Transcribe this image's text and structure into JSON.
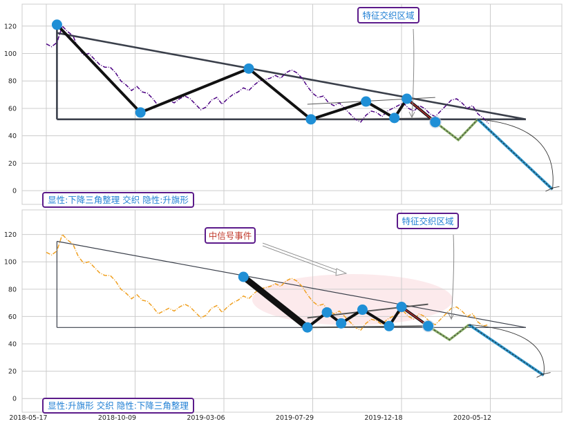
{
  "chart_data": [
    {
      "type": "line",
      "panel": "top",
      "ylim": [
        -10,
        136
      ],
      "y_ticks": [
        0,
        20,
        40,
        60,
        80,
        100,
        120
      ],
      "grid": true,
      "annotations": {
        "zone_label": "特征交织区域",
        "pattern_label": "显性:下降三角整理 交织 隐性:升旗形"
      },
      "colors": {
        "price": "#4b0082",
        "pivot": "#1f8fd6",
        "zigzag": "#111111",
        "trend": "#3a3f4a",
        "forecast_a": "#8db36a",
        "forecast_b": "#2d96cc",
        "label_box": "#5b1a8a",
        "label_text": "#1f7fd4"
      },
      "price_series": [
        [
          0,
          107
        ],
        [
          3,
          105
        ],
        [
          6,
          108
        ],
        [
          9,
          120
        ],
        [
          12,
          116
        ],
        [
          15,
          113
        ],
        [
          18,
          104
        ],
        [
          21,
          99
        ],
        [
          24,
          100
        ],
        [
          27,
          96
        ],
        [
          30,
          92
        ],
        [
          33,
          90
        ],
        [
          36,
          90
        ],
        [
          39,
          86
        ],
        [
          42,
          80
        ],
        [
          45,
          77
        ],
        [
          48,
          73
        ],
        [
          51,
          76
        ],
        [
          54,
          72
        ],
        [
          57,
          71
        ],
        [
          60,
          67
        ],
        [
          63,
          62
        ],
        [
          66,
          64
        ],
        [
          69,
          66
        ],
        [
          72,
          64
        ],
        [
          75,
          67
        ],
        [
          78,
          69
        ],
        [
          81,
          67
        ],
        [
          84,
          63
        ],
        [
          87,
          59
        ],
        [
          90,
          61
        ],
        [
          93,
          66
        ],
        [
          96,
          68
        ],
        [
          99,
          63
        ],
        [
          102,
          67
        ],
        [
          105,
          70
        ],
        [
          108,
          72
        ],
        [
          111,
          75
        ],
        [
          114,
          73
        ],
        [
          117,
          77
        ],
        [
          120,
          80
        ],
        [
          123,
          81
        ],
        [
          126,
          82
        ],
        [
          129,
          84
        ],
        [
          132,
          82
        ],
        [
          135,
          86
        ],
        [
          138,
          88
        ],
        [
          141,
          86
        ],
        [
          144,
          82
        ],
        [
          147,
          76
        ],
        [
          150,
          71
        ],
        [
          153,
          68
        ],
        [
          156,
          69
        ],
        [
          159,
          64
        ],
        [
          162,
          62
        ],
        [
          165,
          64
        ],
        [
          168,
          60
        ],
        [
          171,
          56
        ],
        [
          174,
          52
        ],
        [
          177,
          50
        ],
        [
          180,
          55
        ],
        [
          183,
          58
        ],
        [
          186,
          57
        ],
        [
          189,
          54
        ],
        [
          192,
          58
        ],
        [
          195,
          60
        ],
        [
          198,
          62
        ],
        [
          201,
          64
        ],
        [
          204,
          60
        ],
        [
          207,
          58
        ],
        [
          210,
          62
        ],
        [
          213,
          60
        ],
        [
          216,
          56
        ],
        [
          219,
          54
        ],
        [
          222,
          58
        ],
        [
          225,
          62
        ],
        [
          228,
          66
        ],
        [
          231,
          67
        ],
        [
          234,
          64
        ],
        [
          237,
          60
        ],
        [
          240,
          62
        ],
        [
          243,
          56
        ],
        [
          246,
          53
        ],
        [
          249,
          49
        ]
      ],
      "pivots": [
        [
          6,
          121
        ],
        [
          53,
          57
        ],
        [
          114,
          89
        ],
        [
          149,
          52
        ],
        [
          180,
          65
        ],
        [
          196,
          53
        ],
        [
          203,
          67
        ],
        [
          219,
          50
        ]
      ],
      "zigzag": [
        [
          6,
          121
        ],
        [
          53,
          57
        ],
        [
          114,
          89
        ],
        [
          149,
          52
        ],
        [
          180,
          65
        ],
        [
          196,
          53
        ],
        [
          203,
          67
        ],
        [
          219,
          50
        ]
      ],
      "trend_upper": [
        [
          6,
          115
        ],
        [
          270,
          52
        ]
      ],
      "trend_lower": [
        [
          6,
          52
        ],
        [
          270,
          52
        ]
      ],
      "trend_left_vertical": [
        [
          6,
          121
        ],
        [
          6,
          52
        ]
      ],
      "flag_upper": [
        [
          147,
          63
        ],
        [
          219,
          68
        ]
      ],
      "flag_lower": [
        [
          147,
          52
        ],
        [
          219,
          53
        ]
      ],
      "forecast": [
        [
          219,
          50
        ],
        [
          232,
          37
        ],
        [
          243,
          52
        ],
        [
          285,
          1
        ]
      ],
      "forecast_arc_end": [
        [
          285,
          1
        ]
      ]
    },
    {
      "type": "line",
      "panel": "bottom",
      "ylim": [
        -10,
        138
      ],
      "y_ticks": [
        0,
        20,
        40,
        60,
        80,
        100,
        120
      ],
      "x_ticks": [
        "2018-05-17",
        "2018-10-09",
        "2019-03-06",
        "2019-07-29",
        "2019-12-18",
        "2020-05-12"
      ],
      "grid": true,
      "annotations": {
        "zone_label": "特征交织区域",
        "signal_label": "中信号事件",
        "pattern_label": "显性:升旗形 交织 隐性:下降三角整理"
      },
      "colors": {
        "price": "#f0a020",
        "pivot": "#1f8fd6",
        "zigzag": "#111111",
        "trend": "#3a3f4a",
        "forecast_a": "#8db36a",
        "forecast_b": "#2d96cc",
        "signal_text": "#c0392b",
        "shade": "#fbe3e6"
      },
      "price_series": [
        [
          0,
          107
        ],
        [
          3,
          105
        ],
        [
          6,
          108
        ],
        [
          9,
          120
        ],
        [
          12,
          116
        ],
        [
          15,
          113
        ],
        [
          18,
          104
        ],
        [
          21,
          99
        ],
        [
          24,
          100
        ],
        [
          27,
          96
        ],
        [
          30,
          92
        ],
        [
          33,
          90
        ],
        [
          36,
          90
        ],
        [
          39,
          86
        ],
        [
          42,
          80
        ],
        [
          45,
          77
        ],
        [
          48,
          73
        ],
        [
          51,
          76
        ],
        [
          54,
          72
        ],
        [
          57,
          71
        ],
        [
          60,
          67
        ],
        [
          63,
          62
        ],
        [
          66,
          64
        ],
        [
          69,
          66
        ],
        [
          72,
          64
        ],
        [
          75,
          67
        ],
        [
          78,
          69
        ],
        [
          81,
          67
        ],
        [
          84,
          63
        ],
        [
          87,
          59
        ],
        [
          90,
          61
        ],
        [
          93,
          66
        ],
        [
          96,
          68
        ],
        [
          99,
          63
        ],
        [
          102,
          67
        ],
        [
          105,
          70
        ],
        [
          108,
          72
        ],
        [
          111,
          75
        ],
        [
          114,
          73
        ],
        [
          117,
          77
        ],
        [
          120,
          80
        ],
        [
          123,
          81
        ],
        [
          126,
          82
        ],
        [
          129,
          84
        ],
        [
          132,
          82
        ],
        [
          135,
          86
        ],
        [
          138,
          88
        ],
        [
          141,
          86
        ],
        [
          144,
          82
        ],
        [
          147,
          76
        ],
        [
          150,
          71
        ],
        [
          153,
          68
        ],
        [
          156,
          69
        ],
        [
          159,
          64
        ],
        [
          162,
          62
        ],
        [
          165,
          64
        ],
        [
          168,
          60
        ],
        [
          171,
          56
        ],
        [
          174,
          52
        ],
        [
          177,
          50
        ],
        [
          180,
          55
        ],
        [
          183,
          58
        ],
        [
          186,
          57
        ],
        [
          189,
          54
        ],
        [
          192,
          58
        ],
        [
          195,
          60
        ],
        [
          198,
          62
        ],
        [
          201,
          64
        ],
        [
          204,
          60
        ],
        [
          207,
          58
        ],
        [
          210,
          62
        ],
        [
          213,
          60
        ],
        [
          216,
          56
        ],
        [
          219,
          54
        ],
        [
          222,
          58
        ],
        [
          225,
          62
        ],
        [
          228,
          66
        ],
        [
          231,
          67
        ],
        [
          234,
          64
        ],
        [
          237,
          60
        ],
        [
          240,
          62
        ],
        [
          243,
          56
        ],
        [
          246,
          53
        ],
        [
          249,
          54
        ]
      ],
      "pivots": [
        [
          111,
          89
        ],
        [
          147,
          52
        ],
        [
          158,
          63
        ],
        [
          166,
          55
        ],
        [
          178,
          65
        ],
        [
          193,
          53
        ],
        [
          200,
          67
        ],
        [
          215,
          53
        ]
      ],
      "zigzag": [
        [
          111,
          89
        ],
        [
          147,
          52
        ],
        [
          158,
          63
        ],
        [
          166,
          55
        ],
        [
          178,
          65
        ],
        [
          193,
          53
        ],
        [
          200,
          67
        ],
        [
          215,
          53
        ]
      ],
      "trend_upper": [
        [
          6,
          115
        ],
        [
          270,
          52
        ]
      ],
      "trend_lower": [
        [
          6,
          52
        ],
        [
          270,
          52
        ]
      ],
      "trend_left_vertical": [
        [
          6,
          115
        ],
        [
          6,
          52
        ]
      ],
      "flag_upper": [
        [
          147,
          59
        ],
        [
          215,
          69
        ]
      ],
      "flag_lower": [
        [
          147,
          52
        ],
        [
          215,
          53
        ]
      ],
      "forecast": [
        [
          215,
          53
        ],
        [
          227,
          43
        ],
        [
          238,
          54
        ],
        [
          280,
          17
        ]
      ],
      "forecast_arc_end": [
        [
          280,
          17
        ]
      ]
    }
  ]
}
